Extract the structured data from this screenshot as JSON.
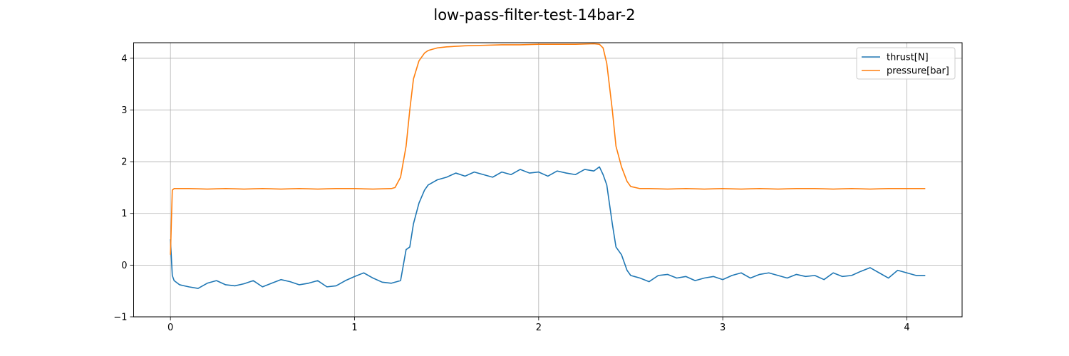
{
  "chart_data": {
    "type": "line",
    "title": "low-pass-filter-test-14bar-2",
    "xlabel": "",
    "ylabel": "",
    "xlim": [
      -0.2,
      4.3
    ],
    "ylim": [
      -1,
      4.3
    ],
    "xticks": [
      0,
      1,
      2,
      3,
      4
    ],
    "yticks": [
      -1,
      0,
      1,
      2,
      3,
      4
    ],
    "xtick_labels": [
      "0",
      "1",
      "2",
      "3",
      "4"
    ],
    "ytick_labels": [
      "−1",
      "0",
      "1",
      "2",
      "3",
      "4"
    ],
    "grid": true,
    "legend_position": "top-right",
    "series": [
      {
        "name": "thrust[N]",
        "color": "#1f77b4",
        "x": [
          0,
          0.01,
          0.02,
          0.05,
          0.1,
          0.15,
          0.2,
          0.25,
          0.3,
          0.35,
          0.4,
          0.45,
          0.5,
          0.55,
          0.6,
          0.65,
          0.7,
          0.75,
          0.8,
          0.85,
          0.9,
          0.95,
          1.0,
          1.05,
          1.1,
          1.15,
          1.2,
          1.25,
          1.28,
          1.3,
          1.32,
          1.35,
          1.38,
          1.4,
          1.45,
          1.5,
          1.55,
          1.6,
          1.65,
          1.7,
          1.75,
          1.8,
          1.85,
          1.9,
          1.95,
          2.0,
          2.05,
          2.1,
          2.15,
          2.2,
          2.25,
          2.3,
          2.33,
          2.35,
          2.37,
          2.4,
          2.42,
          2.45,
          2.48,
          2.5,
          2.55,
          2.6,
          2.65,
          2.7,
          2.75,
          2.8,
          2.85,
          2.9,
          2.95,
          3.0,
          3.05,
          3.1,
          3.15,
          3.2,
          3.25,
          3.3,
          3.35,
          3.4,
          3.45,
          3.5,
          3.55,
          3.6,
          3.65,
          3.7,
          3.75,
          3.8,
          3.85,
          3.9,
          3.95,
          4.0,
          4.05,
          4.1
        ],
        "y": [
          0.5,
          -0.2,
          -0.3,
          -0.38,
          -0.42,
          -0.45,
          -0.35,
          -0.3,
          -0.38,
          -0.4,
          -0.36,
          -0.3,
          -0.42,
          -0.35,
          -0.28,
          -0.32,
          -0.38,
          -0.35,
          -0.3,
          -0.42,
          -0.4,
          -0.3,
          -0.22,
          -0.15,
          -0.25,
          -0.33,
          -0.35,
          -0.3,
          0.3,
          0.35,
          0.8,
          1.2,
          1.45,
          1.55,
          1.65,
          1.7,
          1.78,
          1.72,
          1.8,
          1.75,
          1.7,
          1.8,
          1.75,
          1.85,
          1.78,
          1.8,
          1.72,
          1.82,
          1.78,
          1.75,
          1.85,
          1.82,
          1.9,
          1.75,
          1.55,
          0.8,
          0.35,
          0.2,
          -0.1,
          -0.2,
          -0.25,
          -0.32,
          -0.2,
          -0.18,
          -0.25,
          -0.22,
          -0.3,
          -0.25,
          -0.22,
          -0.28,
          -0.2,
          -0.15,
          -0.25,
          -0.18,
          -0.15,
          -0.2,
          -0.25,
          -0.18,
          -0.22,
          -0.2,
          -0.28,
          -0.15,
          -0.22,
          -0.2,
          -0.12,
          -0.05,
          -0.15,
          -0.25,
          -0.1,
          -0.15,
          -0.2,
          -0.2
        ]
      },
      {
        "name": "pressure[bar]",
        "color": "#ff7f0e",
        "x": [
          0,
          0.01,
          0.02,
          0.05,
          0.1,
          0.2,
          0.3,
          0.4,
          0.5,
          0.6,
          0.7,
          0.8,
          0.9,
          1.0,
          1.1,
          1.2,
          1.22,
          1.25,
          1.28,
          1.3,
          1.32,
          1.35,
          1.38,
          1.4,
          1.45,
          1.5,
          1.6,
          1.7,
          1.8,
          1.9,
          2.0,
          2.1,
          2.2,
          2.3,
          2.33,
          2.35,
          2.37,
          2.4,
          2.42,
          2.45,
          2.48,
          2.5,
          2.55,
          2.6,
          2.7,
          2.8,
          2.9,
          3.0,
          3.1,
          3.2,
          3.3,
          3.4,
          3.5,
          3.6,
          3.7,
          3.8,
          3.9,
          4.0,
          4.1
        ],
        "y": [
          0.2,
          1.45,
          1.48,
          1.48,
          1.48,
          1.47,
          1.48,
          1.47,
          1.48,
          1.47,
          1.48,
          1.47,
          1.48,
          1.48,
          1.47,
          1.48,
          1.5,
          1.7,
          2.3,
          3.0,
          3.6,
          3.95,
          4.1,
          4.15,
          4.2,
          4.22,
          4.24,
          4.25,
          4.26,
          4.26,
          4.27,
          4.27,
          4.27,
          4.28,
          4.27,
          4.2,
          3.9,
          3.0,
          2.3,
          1.9,
          1.62,
          1.52,
          1.48,
          1.48,
          1.47,
          1.48,
          1.47,
          1.48,
          1.47,
          1.48,
          1.47,
          1.48,
          1.48,
          1.47,
          1.48,
          1.47,
          1.48,
          1.48,
          1.48
        ]
      }
    ]
  }
}
